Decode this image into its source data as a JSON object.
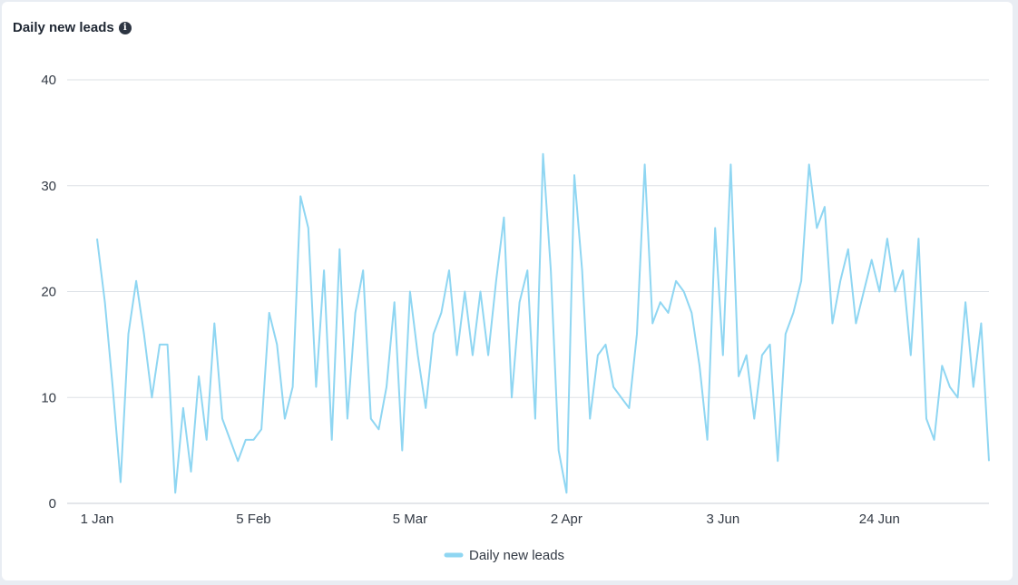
{
  "header": {
    "title": "Daily new leads",
    "info_icon": "info-circle-icon"
  },
  "colors": {
    "line": "#8fd6f2",
    "grid": "#dde1e6",
    "text": "#333a45"
  },
  "chart_data": {
    "type": "line",
    "title": "Daily new leads",
    "xlabel": "",
    "ylabel": "",
    "ylim": [
      0,
      40
    ],
    "yticks": [
      0,
      10,
      20,
      30,
      40
    ],
    "xticks": [
      {
        "label": "1 Jan",
        "index": 0
      },
      {
        "label": "5 Feb",
        "index": 20
      },
      {
        "label": "5 Mar",
        "index": 40
      },
      {
        "label": "2 Apr",
        "index": 60
      },
      {
        "label": "3 Jun",
        "index": 80
      },
      {
        "label": "24 Jun",
        "index": 100
      }
    ],
    "grid": true,
    "legend_position": "bottom",
    "series": [
      {
        "name": "Daily new leads",
        "values": [
          25,
          19,
          11,
          2,
          16,
          21,
          16,
          10,
          15,
          15,
          1,
          9,
          3,
          12,
          6,
          17,
          8,
          6,
          4,
          6,
          6,
          7,
          18,
          15,
          8,
          11,
          29,
          26,
          11,
          22,
          6,
          24,
          8,
          18,
          22,
          8,
          7,
          11,
          19,
          5,
          20,
          14,
          9,
          16,
          18,
          22,
          14,
          20,
          14,
          20,
          14,
          21,
          27,
          10,
          19,
          22,
          8,
          33,
          22,
          5,
          1,
          31,
          22,
          8,
          14,
          15,
          11,
          10,
          9,
          16,
          32,
          17,
          19,
          18,
          21,
          20,
          18,
          13,
          6,
          26,
          14,
          32,
          12,
          14,
          8,
          14,
          15,
          4,
          16,
          18,
          21,
          32,
          26,
          28,
          17,
          21,
          24,
          17,
          20,
          23,
          20,
          25,
          20,
          22,
          14,
          25,
          8,
          6,
          13,
          11,
          10,
          19,
          11,
          17,
          4
        ]
      }
    ]
  }
}
